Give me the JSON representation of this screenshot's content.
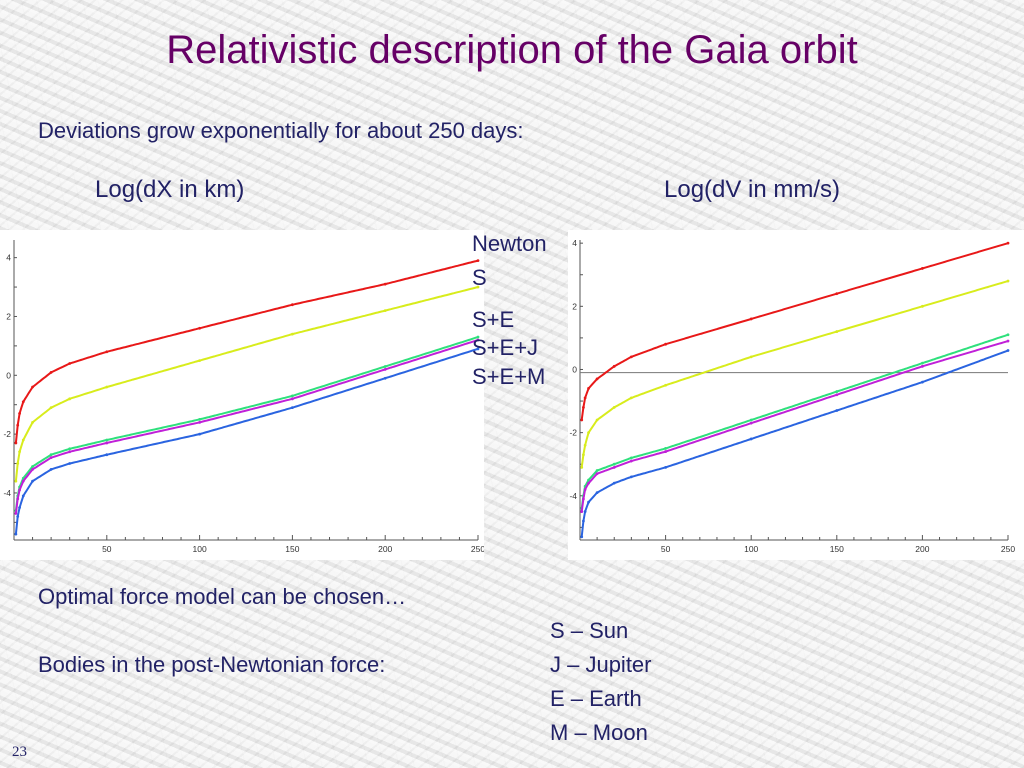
{
  "slide": {
    "title": "Relativistic description of the Gaia orbit",
    "subtitle": "Deviations grow exponentially for about 250 days:",
    "left_plot_label": "Log(dX in km)",
    "right_plot_label": "Log(dV in mm/s)",
    "legend": [
      "Newton",
      "S",
      "S+E",
      "S+E+J",
      "S+E+M"
    ],
    "bottom_line1": "Optimal force model can be chosen…",
    "bottom_line2": "Bodies in the post-Newtonian force:",
    "bodies": [
      "S – Sun",
      "J – Jupiter",
      "E – Earth",
      "M – Moon"
    ],
    "slide_number": "23"
  },
  "colors": {
    "title": "#660066",
    "text": "#222266",
    "Newton": "#e81818",
    "S": "#d8ec1c",
    "S+E": "#2ee07c",
    "S+E+J": "#c020d8",
    "S+E+M": "#2a64e0"
  },
  "chart_data": [
    {
      "type": "scatter",
      "title": "Log(dX in km)",
      "xlabel": "",
      "ylabel": "",
      "xlim": [
        0,
        250
      ],
      "ylim": [
        -5.6,
        4.6
      ],
      "x_ticks": [
        50,
        100,
        150,
        200,
        250
      ],
      "y_ticks": [
        -4,
        -2,
        0,
        2,
        4
      ],
      "grid": false,
      "series": [
        {
          "key": "Newton",
          "x": [
            1,
            2,
            3,
            5,
            10,
            20,
            30,
            50,
            100,
            150,
            200,
            250
          ],
          "values": [
            -2.3,
            -1.7,
            -1.3,
            -0.9,
            -0.4,
            0.1,
            0.4,
            0.8,
            1.6,
            2.4,
            3.1,
            3.9
          ]
        },
        {
          "key": "S",
          "x": [
            1,
            2,
            3,
            5,
            10,
            20,
            30,
            50,
            100,
            150,
            200,
            250
          ],
          "values": [
            -3.6,
            -3.0,
            -2.6,
            -2.2,
            -1.6,
            -1.1,
            -0.8,
            -0.4,
            0.5,
            1.4,
            2.2,
            3.0
          ]
        },
        {
          "key": "S+E",
          "x": [
            1,
            2,
            3,
            5,
            10,
            20,
            30,
            50,
            100,
            150,
            200,
            250
          ],
          "values": [
            -4.6,
            -4.1,
            -3.8,
            -3.5,
            -3.1,
            -2.7,
            -2.5,
            -2.2,
            -1.5,
            -0.7,
            0.3,
            1.3
          ]
        },
        {
          "key": "S+E+J",
          "x": [
            1,
            2,
            3,
            5,
            10,
            20,
            30,
            50,
            100,
            150,
            200,
            250
          ],
          "values": [
            -4.7,
            -4.2,
            -3.9,
            -3.6,
            -3.2,
            -2.8,
            -2.6,
            -2.3,
            -1.6,
            -0.8,
            0.2,
            1.2
          ]
        },
        {
          "key": "S+E+M",
          "x": [
            1,
            2,
            3,
            5,
            10,
            20,
            30,
            50,
            100,
            150,
            200,
            250
          ],
          "values": [
            -5.4,
            -4.8,
            -4.5,
            -4.1,
            -3.6,
            -3.2,
            -3.0,
            -2.7,
            -2.0,
            -1.1,
            -0.1,
            0.9
          ]
        }
      ]
    },
    {
      "type": "scatter",
      "title": "Log(dV in mm/s)",
      "xlabel": "",
      "ylabel": "",
      "xlim": [
        0,
        250
      ],
      "ylim": [
        -5.4,
        4.1
      ],
      "x_ticks": [
        50,
        100,
        150,
        200,
        250
      ],
      "y_ticks": [
        -4,
        -2,
        0,
        2,
        4
      ],
      "grid": false,
      "reference_line_y": -0.1,
      "series": [
        {
          "key": "Newton",
          "x": [
            1,
            2,
            3,
            5,
            10,
            20,
            30,
            50,
            100,
            150,
            200,
            250
          ],
          "values": [
            -1.6,
            -1.2,
            -0.9,
            -0.6,
            -0.3,
            0.1,
            0.4,
            0.8,
            1.6,
            2.4,
            3.2,
            4.0
          ]
        },
        {
          "key": "S",
          "x": [
            1,
            2,
            3,
            5,
            10,
            20,
            30,
            50,
            100,
            150,
            200,
            250
          ],
          "values": [
            -3.1,
            -2.7,
            -2.4,
            -2.0,
            -1.6,
            -1.2,
            -0.9,
            -0.5,
            0.4,
            1.2,
            2.0,
            2.8
          ]
        },
        {
          "key": "S+E",
          "x": [
            1,
            2,
            3,
            5,
            10,
            20,
            30,
            50,
            100,
            150,
            200,
            250
          ],
          "values": [
            -4.4,
            -4.0,
            -3.7,
            -3.5,
            -3.2,
            -3.0,
            -2.8,
            -2.5,
            -1.6,
            -0.7,
            0.2,
            1.1
          ]
        },
        {
          "key": "S+E+J",
          "x": [
            1,
            2,
            3,
            5,
            10,
            20,
            30,
            50,
            100,
            150,
            200,
            250
          ],
          "values": [
            -4.5,
            -4.1,
            -3.8,
            -3.6,
            -3.3,
            -3.1,
            -2.9,
            -2.6,
            -1.7,
            -0.8,
            0.1,
            0.9
          ]
        },
        {
          "key": "S+E+M",
          "x": [
            1,
            2,
            3,
            5,
            10,
            20,
            30,
            50,
            100,
            150,
            200,
            250
          ],
          "values": [
            -5.3,
            -4.8,
            -4.5,
            -4.2,
            -3.9,
            -3.6,
            -3.4,
            -3.1,
            -2.2,
            -1.3,
            -0.4,
            0.6
          ]
        }
      ]
    }
  ]
}
